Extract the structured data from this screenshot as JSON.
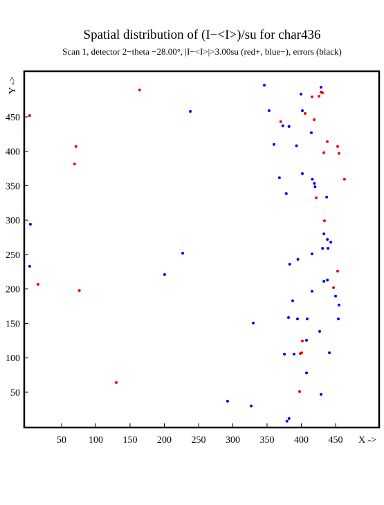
{
  "chart_data": {
    "type": "scatter",
    "title": "Spatial distribution of (I−<I>)/su for char436",
    "subtitle": "Scan  1, detector 2−theta −28.00°, |I−<I>|>3.00su (red+, blue−), errors (black)",
    "x_label": "X ->",
    "y_label": "Y ->",
    "xlim": [
      -4.5,
      513.6
    ],
    "ylim": [
      -1.3,
      516.3
    ],
    "xticks": [
      50,
      100,
      150,
      200,
      250,
      300,
      350,
      400,
      450
    ],
    "yticks": [
      50,
      100,
      150,
      200,
      250,
      300,
      350,
      400,
      450
    ],
    "series": [
      {
        "color": "#0000ff",
        "x": [
          346,
          399.5,
          428.8,
          353,
          401.5,
          238,
          373,
          382,
          414.6,
          360,
          393,
          401.5,
          416,
          419,
          420,
          368,
          378,
          437,
          4.5,
          433,
          438,
          439,
          443,
          431,
          226.8,
          415.6,
          395,
          383,
          3.5,
          200.5,
          433,
          438,
          415.6,
          450,
          387.4,
          455,
          381.3,
          394.4,
          408.5,
          454,
          329.8,
          426.8,
          407.6,
          375.3,
          389.4,
          441,
          407.6,
          428.8,
          292.4,
          326.8,
          382,
          379
        ],
        "values": [
          496,
          483,
          493,
          459,
          459,
          458,
          437,
          436,
          427,
          410,
          408,
          367.5,
          359.5,
          353.5,
          348.5,
          361.5,
          338.5,
          333.5,
          294,
          280,
          272,
          259,
          268,
          259,
          252,
          251,
          243,
          236,
          233,
          221,
          211,
          213,
          196.7,
          189.7,
          182.7,
          176.6,
          158.5,
          156.5,
          156.5,
          156.5,
          150.5,
          138.4,
          125.4,
          105.3,
          105.3,
          107.3,
          78,
          47,
          37,
          30,
          11.8,
          8
        ]
      },
      {
        "color": "#ff0000",
        "x": [
          164,
          428.8,
          430.8,
          415.6,
          425.8,
          3.5,
          405.5,
          418.7,
          370,
          437.9,
          71,
          453,
          455,
          432.8,
          69,
          463,
          421.7,
          433.8,
          453,
          15.7,
          447,
          76,
          401.5,
          398.5,
          400.5,
          397.5,
          129.8
        ],
        "values": [
          489,
          486,
          485,
          479,
          480,
          452,
          455,
          446,
          443,
          414,
          407,
          407,
          397,
          398,
          381.6,
          359.5,
          332.4,
          299,
          226,
          206.8,
          201.8,
          197.7,
          124.4,
          106.3,
          107.3,
          51,
          64
        ]
      }
    ]
  }
}
